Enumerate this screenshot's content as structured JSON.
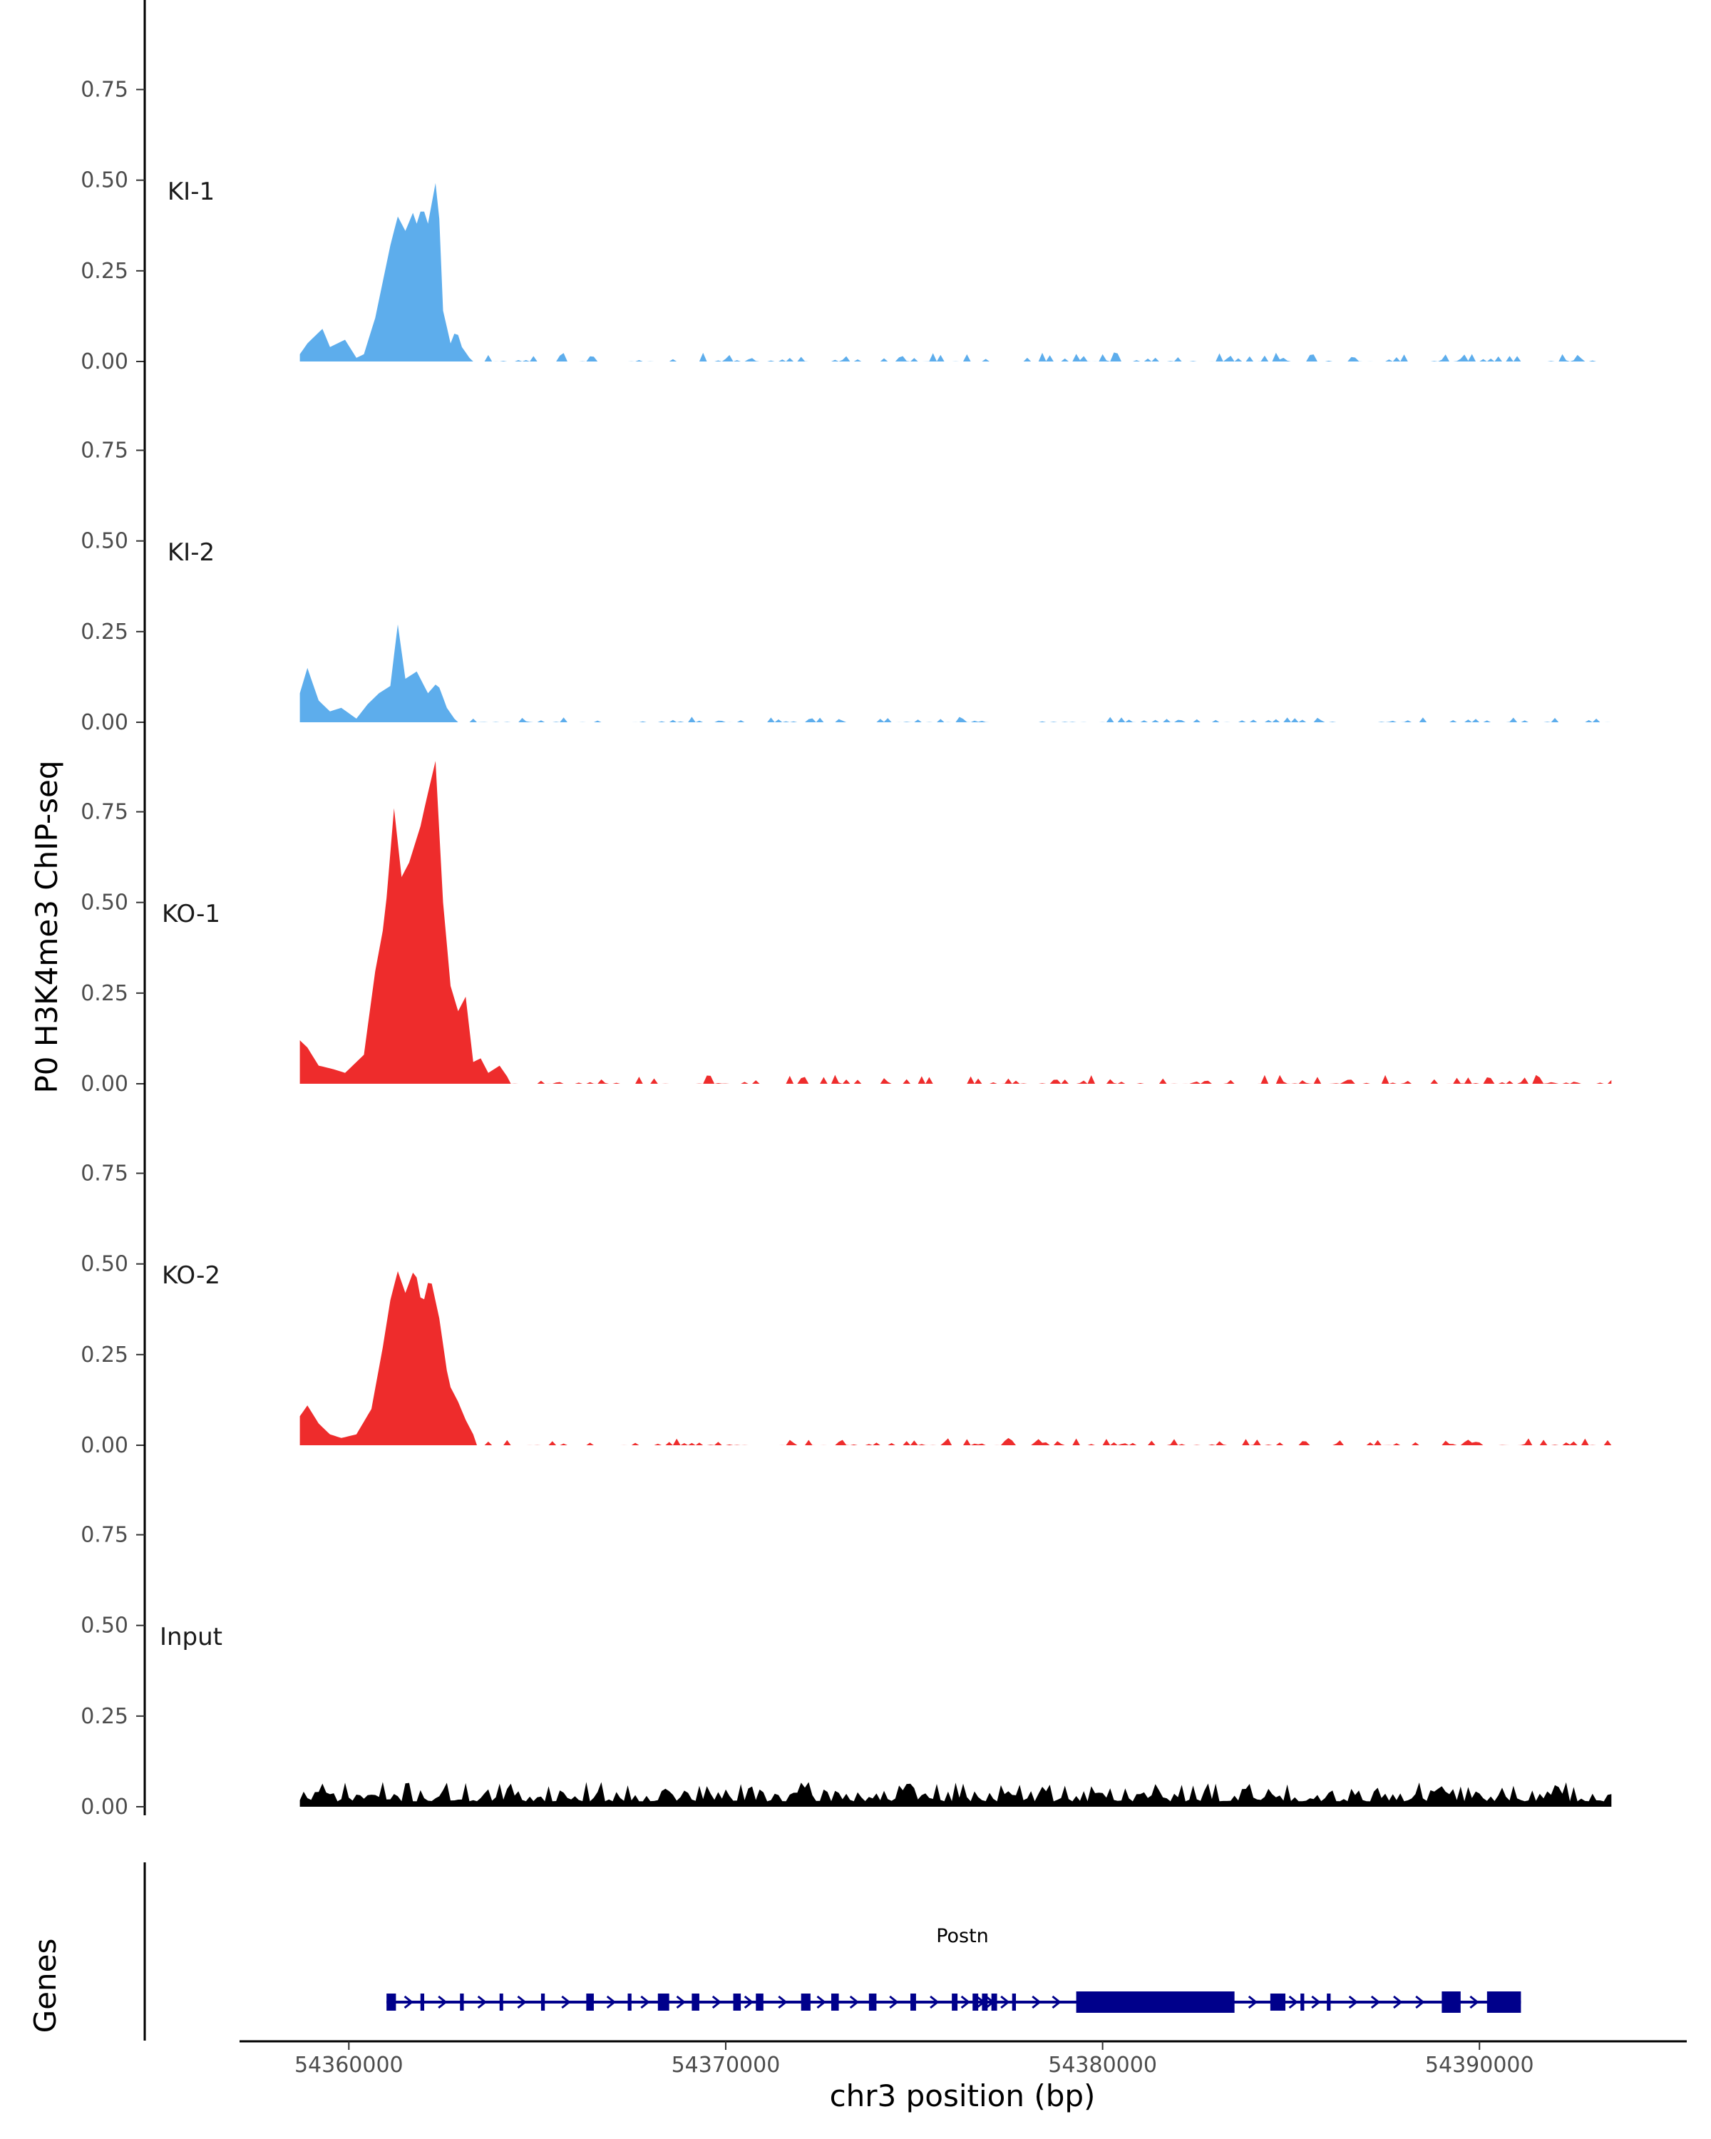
{
  "chart_data": {
    "type": "area",
    "ylabel": "P0 H3K4me3 ChIP-seq",
    "xlabel": "chr3 position (bp)",
    "genes_label": "Genes",
    "gene_name": "Postn",
    "y_tick_labels": [
      "0.00",
      "0.25",
      "0.50",
      "0.75"
    ],
    "y_ticks": [
      0,
      0.25,
      0.5,
      0.75
    ],
    "ylim": [
      0,
      0.93
    ],
    "x_tick_labels": [
      "54360000",
      "54370000",
      "54380000",
      "54390000"
    ],
    "x_ticks": [
      54360000,
      54370000,
      54380000,
      54390000
    ],
    "xlim": [
      54357100,
      54395500
    ],
    "tracks": [
      {
        "name": "KI-1",
        "color": "#5DADEC",
        "x_start": 54358700,
        "x_end": 54393500,
        "peaks": [
          [
            54358700,
            0.02
          ],
          [
            54358900,
            0.05
          ],
          [
            54359300,
            0.09
          ],
          [
            54359500,
            0.04
          ],
          [
            54359900,
            0.06
          ],
          [
            54360200,
            0.01
          ],
          [
            54360400,
            0.02
          ],
          [
            54360700,
            0.12
          ],
          [
            54360900,
            0.22
          ],
          [
            54361100,
            0.32
          ],
          [
            54361300,
            0.4
          ],
          [
            54361500,
            0.36
          ],
          [
            54361700,
            0.41
          ],
          [
            54361800,
            0.38
          ],
          [
            54361950,
            0.43
          ],
          [
            54362100,
            0.38
          ],
          [
            54362350,
            0.52
          ],
          [
            54362500,
            0.14
          ],
          [
            54362700,
            0.05
          ],
          [
            54362850,
            0.09
          ],
          [
            54363000,
            0.04
          ],
          [
            54363200,
            0.01
          ]
        ],
        "noise_level": 0.025,
        "seed": 11
      },
      {
        "name": "KI-2",
        "color": "#5DADEC",
        "x_start": 54358700,
        "x_end": 54393500,
        "peaks": [
          [
            54358700,
            0.08
          ],
          [
            54358900,
            0.15
          ],
          [
            54359200,
            0.06
          ],
          [
            54359500,
            0.03
          ],
          [
            54359800,
            0.04
          ],
          [
            54360200,
            0.01
          ],
          [
            54360500,
            0.05
          ],
          [
            54360800,
            0.08
          ],
          [
            54361100,
            0.1
          ],
          [
            54361300,
            0.27
          ],
          [
            54361500,
            0.12
          ],
          [
            54361800,
            0.14
          ],
          [
            54362100,
            0.08
          ],
          [
            54362350,
            0.11
          ],
          [
            54362600,
            0.04
          ],
          [
            54362800,
            0.01
          ]
        ],
        "noise_level": 0.015,
        "seed": 23
      },
      {
        "name": "KO-1",
        "color": "#EE2C2C",
        "x_start": 54358700,
        "x_end": 54393500,
        "peaks": [
          [
            54358700,
            0.12
          ],
          [
            54358900,
            0.1
          ],
          [
            54359200,
            0.05
          ],
          [
            54359600,
            0.04
          ],
          [
            54359900,
            0.03
          ],
          [
            54360200,
            0.06
          ],
          [
            54360400,
            0.08
          ],
          [
            54360700,
            0.31
          ],
          [
            54360950,
            0.45
          ],
          [
            54361200,
            0.76
          ],
          [
            54361400,
            0.57
          ],
          [
            54361600,
            0.61
          ],
          [
            54361900,
            0.71
          ],
          [
            54362050,
            0.78
          ],
          [
            54362300,
            0.89
          ],
          [
            54362500,
            0.5
          ],
          [
            54362700,
            0.27
          ],
          [
            54362900,
            0.2
          ],
          [
            54363100,
            0.24
          ],
          [
            54363300,
            0.06
          ],
          [
            54363500,
            0.07
          ],
          [
            54363700,
            0.03
          ],
          [
            54364000,
            0.05
          ],
          [
            54364200,
            0.02
          ]
        ],
        "noise_level": 0.025,
        "seed": 37
      },
      {
        "name": "KO-2",
        "color": "#EE2C2C",
        "x_start": 54358700,
        "x_end": 54393500,
        "peaks": [
          [
            54358700,
            0.08
          ],
          [
            54358900,
            0.11
          ],
          [
            54359200,
            0.06
          ],
          [
            54359500,
            0.03
          ],
          [
            54359800,
            0.02
          ],
          [
            54360200,
            0.03
          ],
          [
            54360600,
            0.1
          ],
          [
            54360900,
            0.27
          ],
          [
            54361100,
            0.4
          ],
          [
            54361300,
            0.48
          ],
          [
            54361500,
            0.42
          ],
          [
            54361750,
            0.49
          ],
          [
            54361950,
            0.38
          ],
          [
            54362150,
            0.47
          ],
          [
            54362400,
            0.35
          ],
          [
            54362650,
            0.17
          ],
          [
            54362900,
            0.12
          ],
          [
            54363100,
            0.07
          ],
          [
            54363300,
            0.03
          ]
        ],
        "noise_level": 0.02,
        "seed": 53
      },
      {
        "name": "Input",
        "color": "#000000",
        "x_start": 54358700,
        "x_end": 54393500,
        "peaks": [],
        "baseline": 0.025,
        "noise_level": 0.055,
        "seed": 71
      }
    ],
    "gene_model": {
      "name": "Postn",
      "color": "#00008B",
      "strand": "+",
      "start": 54361000,
      "end": 54391100,
      "exons": [
        [
          54361000,
          54361250
        ],
        [
          54361900,
          54362000
        ],
        [
          54362950,
          54363050
        ],
        [
          54364000,
          54364060
        ],
        [
          54365100,
          54365200
        ],
        [
          54366300,
          54366500
        ],
        [
          54367400,
          54367500
        ],
        [
          54368200,
          54368500
        ],
        [
          54369100,
          54369300
        ],
        [
          54370200,
          54370400
        ],
        [
          54370800,
          54371000
        ],
        [
          54372000,
          54372250
        ],
        [
          54372800,
          54373000
        ],
        [
          54373800,
          54374000
        ],
        [
          54374900,
          54375050
        ],
        [
          54376000,
          54376150
        ],
        [
          54376550,
          54376700
        ],
        [
          54376800,
          54376950
        ],
        [
          54377050,
          54377200
        ],
        [
          54377600,
          54377700
        ],
        [
          54379300,
          54383500
        ],
        [
          54384450,
          54384850
        ],
        [
          54385250,
          54385350
        ],
        [
          54385950,
          54386050
        ],
        [
          54389000,
          54389500
        ],
        [
          54390200,
          54391100
        ]
      ],
      "thick_exons": [
        [
          54379300,
          54383500
        ],
        [
          54389000,
          54389500
        ],
        [
          54390200,
          54391100
        ]
      ]
    }
  }
}
